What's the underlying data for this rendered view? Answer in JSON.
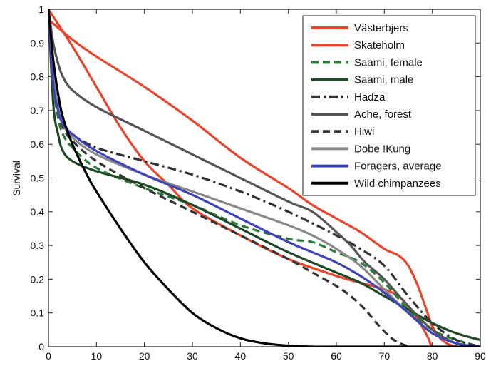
{
  "chart_data": {
    "type": "line",
    "title": "",
    "xlabel": "",
    "ylabel": "Survival",
    "xlim": [
      0,
      90
    ],
    "ylim": [
      0,
      1
    ],
    "x_ticks": [
      0,
      10,
      20,
      30,
      40,
      50,
      60,
      70,
      80,
      90
    ],
    "y_ticks": [
      0,
      0.1,
      0.2,
      0.3,
      0.4,
      0.5,
      0.6,
      0.7,
      0.8,
      0.9,
      1
    ],
    "x_tick_labels": [
      "0",
      "10",
      "20",
      "30",
      "40",
      "50",
      "60",
      "70",
      "80",
      "90"
    ],
    "y_tick_labels": [
      "0",
      "0.1",
      "0.2",
      "0.3",
      "0.4",
      "0.5",
      "0.6",
      "0.7",
      "0.8",
      "0.9",
      "1"
    ],
    "grid": false,
    "legend_position": "top-right",
    "series": [
      {
        "name": "Västerbjers",
        "color": "#e8452c",
        "dash": "solid",
        "x": [
          0,
          5,
          10,
          20,
          30,
          40,
          50,
          55,
          60,
          65,
          70,
          73,
          75,
          77,
          79,
          80,
          82,
          85,
          90
        ],
        "y": [
          0.97,
          0.91,
          0.86,
          0.77,
          0.67,
          0.56,
          0.47,
          0.42,
          0.38,
          0.34,
          0.29,
          0.27,
          0.24,
          0.18,
          0.1,
          0.06,
          0.02,
          0.0,
          0.0
        ]
      },
      {
        "name": "Skateholm",
        "color": "#e8452c",
        "dash": "solid",
        "x": [
          0,
          5,
          10,
          15,
          20,
          25,
          30,
          40,
          50,
          60,
          65,
          70,
          73,
          75,
          77,
          79,
          80,
          82
        ],
        "y": [
          1.0,
          0.89,
          0.77,
          0.65,
          0.55,
          0.48,
          0.41,
          0.33,
          0.26,
          0.21,
          0.19,
          0.17,
          0.15,
          0.12,
          0.08,
          0.03,
          0.0,
          0.0
        ]
      },
      {
        "name": "Saami, female",
        "color": "#2a7a3a",
        "dash": "dash",
        "x": [
          0,
          1,
          2,
          3,
          5,
          10,
          20,
          30,
          40,
          50,
          55,
          60,
          65,
          70,
          75,
          80,
          85,
          90
        ],
        "y": [
          1.0,
          0.78,
          0.68,
          0.63,
          0.59,
          0.53,
          0.47,
          0.42,
          0.36,
          0.32,
          0.31,
          0.28,
          0.25,
          0.19,
          0.11,
          0.05,
          0.02,
          0.0
        ]
      },
      {
        "name": "Saami, male",
        "color": "#1d4a24",
        "dash": "solid",
        "x": [
          0,
          1,
          2,
          3,
          5,
          10,
          20,
          30,
          40,
          50,
          60,
          65,
          70,
          75,
          80,
          85,
          90
        ],
        "y": [
          1.0,
          0.72,
          0.63,
          0.58,
          0.55,
          0.52,
          0.48,
          0.42,
          0.35,
          0.28,
          0.22,
          0.19,
          0.15,
          0.11,
          0.07,
          0.04,
          0.02
        ]
      },
      {
        "name": "Hadza",
        "color": "#333333",
        "dash": "dashdot",
        "x": [
          0,
          1,
          2,
          3,
          5,
          10,
          20,
          30,
          40,
          50,
          60,
          65,
          70,
          75,
          80,
          85,
          90
        ],
        "y": [
          1.0,
          0.82,
          0.72,
          0.66,
          0.63,
          0.59,
          0.55,
          0.51,
          0.46,
          0.4,
          0.33,
          0.29,
          0.24,
          0.15,
          0.07,
          0.02,
          0.0
        ]
      },
      {
        "name": "Ache, forest",
        "color": "#555555",
        "dash": "solid",
        "x": [
          0,
          1,
          2,
          3,
          5,
          10,
          20,
          30,
          40,
          50,
          55,
          60,
          63,
          66,
          70,
          75,
          80,
          85,
          90
        ],
        "y": [
          1.0,
          0.9,
          0.84,
          0.8,
          0.76,
          0.71,
          0.64,
          0.57,
          0.5,
          0.43,
          0.4,
          0.34,
          0.3,
          0.25,
          0.2,
          0.12,
          0.05,
          0.01,
          0.0
        ]
      },
      {
        "name": "Hiwi",
        "color": "#333333",
        "dash": "dash",
        "x": [
          0,
          1,
          2,
          3,
          5,
          10,
          20,
          30,
          40,
          50,
          55,
          60,
          63,
          66,
          69,
          72,
          75
        ],
        "y": [
          1.0,
          0.8,
          0.7,
          0.65,
          0.61,
          0.55,
          0.47,
          0.4,
          0.33,
          0.26,
          0.22,
          0.18,
          0.15,
          0.11,
          0.06,
          0.02,
          0.0
        ]
      },
      {
        "name": "Dobe !Kung",
        "color": "#8a8a8a",
        "dash": "solid",
        "x": [
          0,
          1,
          2,
          3,
          5,
          10,
          20,
          30,
          40,
          50,
          55,
          60,
          65,
          70,
          75,
          80,
          85,
          90
        ],
        "y": [
          1.0,
          0.8,
          0.71,
          0.66,
          0.62,
          0.57,
          0.51,
          0.46,
          0.41,
          0.36,
          0.33,
          0.29,
          0.24,
          0.17,
          0.1,
          0.04,
          0.01,
          0.0
        ]
      },
      {
        "name": "Foragers, average",
        "color": "#4043b8",
        "dash": "solid",
        "x": [
          0,
          1,
          2,
          3,
          5,
          10,
          20,
          30,
          40,
          50,
          55,
          60,
          65,
          70,
          75,
          80,
          85,
          90
        ],
        "y": [
          1.0,
          0.78,
          0.7,
          0.66,
          0.63,
          0.58,
          0.51,
          0.45,
          0.38,
          0.31,
          0.28,
          0.25,
          0.21,
          0.16,
          0.1,
          0.04,
          0.01,
          0.0
        ]
      },
      {
        "name": "Wild chimpanzees",
        "color": "#000000",
        "dash": "solid",
        "x": [
          0,
          1,
          2,
          3,
          5,
          8,
          10,
          15,
          20,
          25,
          30,
          35,
          40,
          45,
          50,
          55,
          60,
          90
        ],
        "y": [
          1.0,
          0.85,
          0.75,
          0.68,
          0.6,
          0.51,
          0.46,
          0.35,
          0.25,
          0.17,
          0.1,
          0.055,
          0.025,
          0.01,
          0.003,
          0.0,
          0.0,
          0.0
        ]
      }
    ]
  }
}
